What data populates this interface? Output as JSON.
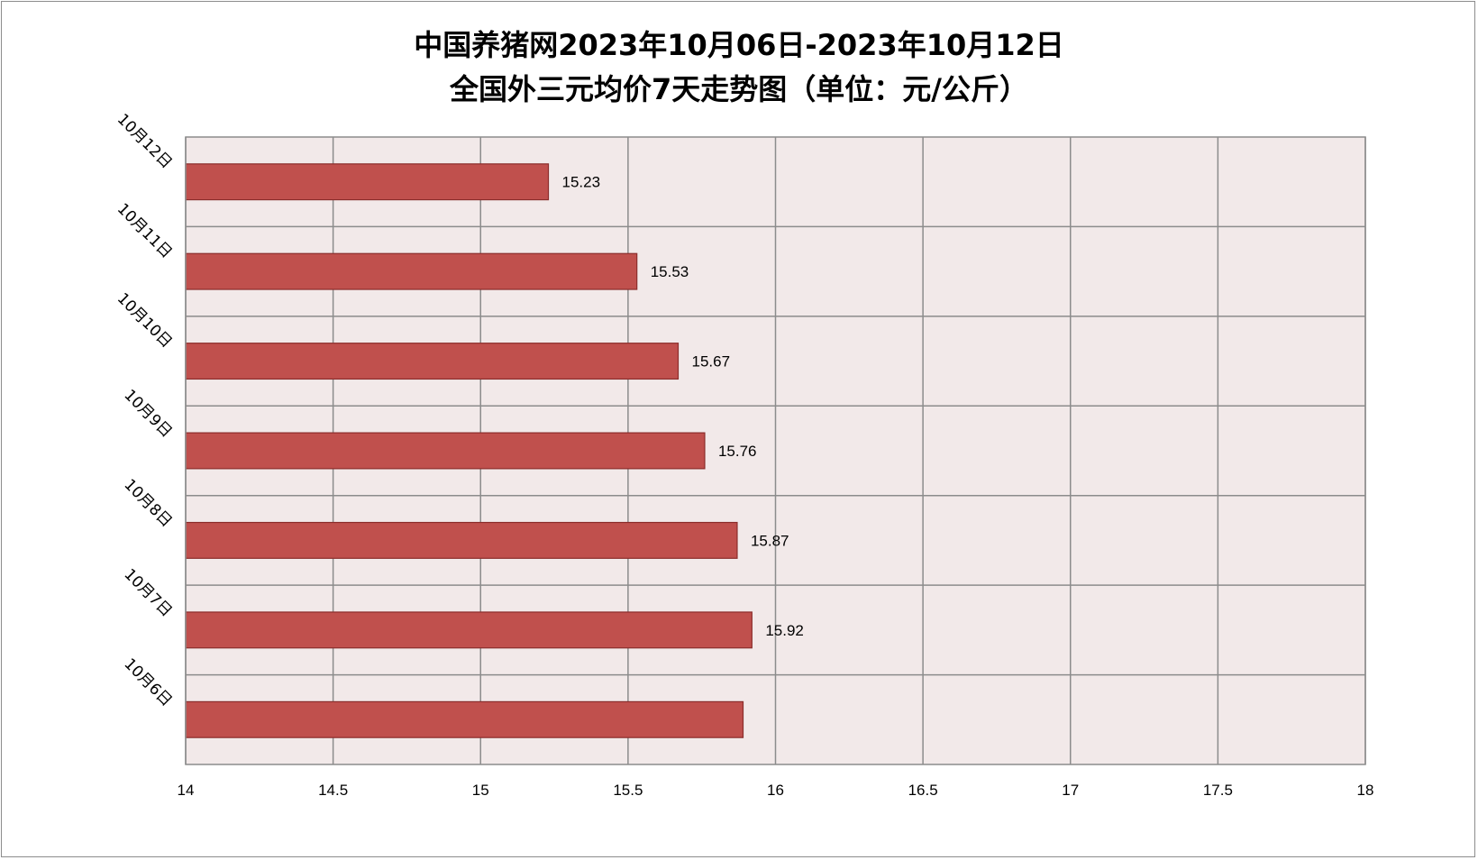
{
  "chart_data": {
    "type": "bar",
    "orientation": "horizontal",
    "title_lines": [
      "中国养猪网2023年10月06日-2023年10月12日",
      "全国外三元均价7天走势图（单位：元/公斤）"
    ],
    "categories": [
      "10月12日",
      "10月11日",
      "10月10日",
      "10月9日",
      "10月8日",
      "10月7日",
      "10月6日"
    ],
    "values": [
      15.23,
      15.53,
      15.67,
      15.76,
      15.87,
      15.92,
      15.89
    ],
    "data_labels": [
      "15.23",
      "15.53",
      "15.67",
      "15.76",
      "15.87",
      "15.92",
      ""
    ],
    "xlim": [
      14,
      18
    ],
    "x_ticks": [
      "14",
      "14.5",
      "15",
      "15.5",
      "16",
      "16.5",
      "17",
      "17.5",
      "18"
    ],
    "grid": true,
    "colors": {
      "bar_fill": "#c0504d",
      "bar_stroke": "#8b2d2b",
      "plot_bg": "#f2e9e9",
      "grid": "#8c8c8c"
    }
  }
}
